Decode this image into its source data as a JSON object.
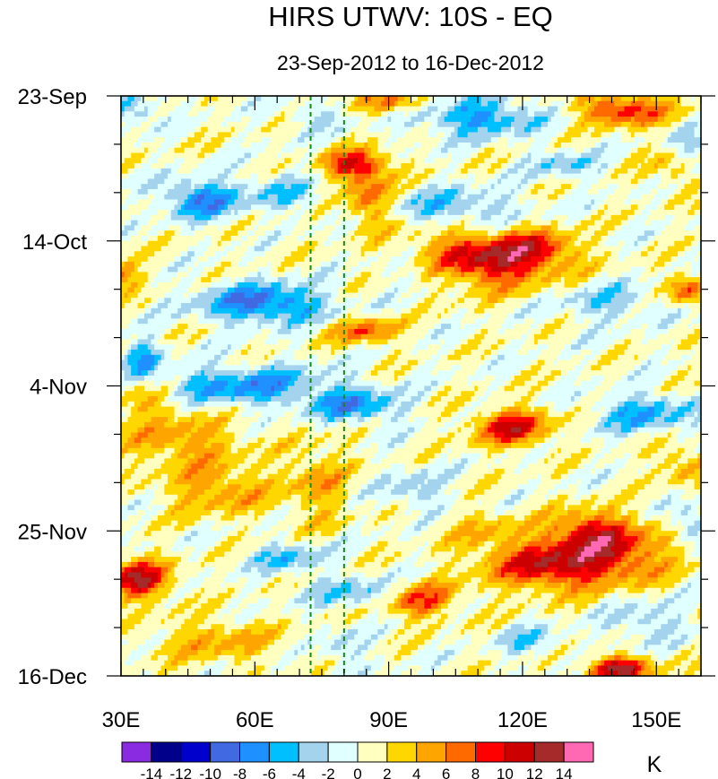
{
  "chart_data": {
    "type": "heatmap",
    "title": "HIRS UTWV: 10S - EQ",
    "subtitle": "23-Sep-2012 to 16-Dec-2012",
    "x_axis": {
      "range_deg_east": [
        30,
        160
      ],
      "ticks": [
        30,
        60,
        90,
        120,
        150
      ],
      "tick_labels": [
        "30E",
        "60E",
        "90E",
        "120E",
        "150E"
      ]
    },
    "y_axis": {
      "range_days": [
        0,
        84
      ],
      "ticks": [
        0,
        21,
        42,
        63,
        84
      ],
      "tick_labels": [
        "23-Sep",
        "14-Oct",
        "4-Nov",
        "25-Nov",
        "16-Dec"
      ],
      "direction": "time increases downward"
    },
    "reference_lines_deg_east": [
      72.5,
      80
    ],
    "colorbar": {
      "unit_label": "K",
      "levels": [
        -14,
        -12,
        -10,
        -8,
        -6,
        -4,
        -2,
        0,
        2,
        4,
        6,
        8,
        10,
        12,
        14
      ],
      "level_labels": [
        "-14",
        "-12",
        "-10",
        "-8",
        "-6",
        "-4",
        "-2",
        "0",
        "2",
        "4",
        "6",
        "8",
        "10",
        "12",
        "14"
      ],
      "colors": [
        "#8a2be2",
        "#00008b",
        "#0000cd",
        "#4169e1",
        "#1e90ff",
        "#00bfff",
        "#a4d3ee",
        "#e0ffff",
        "#ffffc0",
        "#ffd700",
        "#ffa500",
        "#ff6a00",
        "#ff0000",
        "#cd0000",
        "#a52a2a",
        "#ff69b4"
      ]
    },
    "anomalies_K": [
      {
        "lon": 110,
        "day": 24,
        "lon_spread": 11,
        "day_spread": 2.6,
        "value": 13
      },
      {
        "lon": 124,
        "day": 22,
        "lon_spread": 6,
        "day_spread": 1.8,
        "value": 6
      },
      {
        "lon": 83,
        "day": 10,
        "lon_spread": 5,
        "day_spread": 1.5,
        "value": 10
      },
      {
        "lon": 86,
        "day": 15,
        "lon_spread": 3.5,
        "day_spread": 2.5,
        "value": 7
      },
      {
        "lon": 143,
        "day": 2,
        "lon_spread": 7,
        "day_spread": 1.6,
        "value": 9
      },
      {
        "lon": 92,
        "day": 1,
        "lon_spread": 6,
        "day_spread": 1.3,
        "value": 6
      },
      {
        "lon": 118,
        "day": 48,
        "lon_spread": 6,
        "day_spread": 1.8,
        "value": 10
      },
      {
        "lon": 126,
        "day": 68,
        "lon_spread": 10,
        "day_spread": 2.4,
        "value": 10
      },
      {
        "lon": 142,
        "day": 66,
        "lon_spread": 9,
        "day_spread": 3,
        "value": 7
      },
      {
        "lon": 135,
        "day": 63,
        "lon_spread": 6,
        "day_spread": 2,
        "value": 7
      },
      {
        "lon": 34,
        "day": 70,
        "lon_spread": 5,
        "day_spread": 2,
        "value": 11
      },
      {
        "lon": 97,
        "day": 73,
        "lon_spread": 6,
        "day_spread": 1.8,
        "value": 8
      },
      {
        "lon": 142,
        "day": 83,
        "lon_spread": 5,
        "day_spread": 1.2,
        "value": 12
      },
      {
        "lon": 85,
        "day": 34,
        "lon_spread": 5,
        "day_spread": 1.3,
        "value": 7
      },
      {
        "lon": 157,
        "day": 28,
        "lon_spread": 3,
        "day_spread": 1.5,
        "value": 7
      },
      {
        "lon": 44,
        "day": 50,
        "lon_spread": 9,
        "day_spread": 2.5,
        "value": 5
      },
      {
        "lon": 52,
        "day": 57,
        "lon_spread": 8,
        "day_spread": 2.5,
        "value": 5
      },
      {
        "lon": 36,
        "day": 44,
        "lon_spread": 6,
        "day_spread": 2,
        "value": 4
      },
      {
        "lon": 52,
        "day": 79,
        "lon_spread": 10,
        "day_spread": 2.2,
        "value": 4
      },
      {
        "lon": 74,
        "day": 56,
        "lon_spread": 5,
        "day_spread": 4,
        "value": 4
      },
      {
        "lon": 112,
        "day": 63,
        "lon_spread": 6,
        "day_spread": 2,
        "value": 3
      },
      {
        "lon": 156,
        "day": 53,
        "lon_spread": 4,
        "day_spread": 2,
        "value": 4
      },
      {
        "lon": 155,
        "day": 10,
        "lon_spread": 4,
        "day_spread": 2,
        "value": 4
      },
      {
        "lon": 62,
        "day": 30,
        "lon_spread": 10,
        "day_spread": 2,
        "value": -9
      },
      {
        "lon": 48,
        "day": 15,
        "lon_spread": 6,
        "day_spread": 2,
        "value": -8
      },
      {
        "lon": 110,
        "day": 3,
        "lon_spread": 10,
        "day_spread": 2,
        "value": -7
      },
      {
        "lon": 105,
        "day": 16,
        "lon_spread": 10,
        "day_spread": 1.8,
        "value": -5
      },
      {
        "lon": 100,
        "day": 25,
        "lon_spread": 8,
        "day_spread": 2,
        "value": -6
      },
      {
        "lon": 58,
        "day": 42,
        "lon_spread": 15,
        "day_spread": 2,
        "value": -7
      },
      {
        "lon": 83,
        "day": 45,
        "lon_spread": 7,
        "day_spread": 1.6,
        "value": -7
      },
      {
        "lon": 35,
        "day": 38,
        "lon_spread": 3,
        "day_spread": 2,
        "value": -6
      },
      {
        "lon": 84,
        "day": 72,
        "lon_spread": 8,
        "day_spread": 1.5,
        "value": -5
      },
      {
        "lon": 68,
        "day": 67,
        "lon_spread": 6,
        "day_spread": 1.5,
        "value": -5
      },
      {
        "lon": 148,
        "day": 46,
        "lon_spread": 8,
        "day_spread": 2,
        "value": -6
      },
      {
        "lon": 140,
        "day": 30,
        "lon_spread": 8,
        "day_spread": 2,
        "value": -4
      },
      {
        "lon": 148,
        "day": 76,
        "lon_spread": 6,
        "day_spread": 2,
        "value": -4
      },
      {
        "lon": 33,
        "day": 2,
        "lon_spread": 4,
        "day_spread": 1.5,
        "value": -5
      },
      {
        "lon": 158,
        "day": 8,
        "lon_spread": 3,
        "day_spread": 2,
        "value": -5
      },
      {
        "lon": 130,
        "day": 10,
        "lon_spread": 6,
        "day_spread": 1.5,
        "value": -4
      },
      {
        "lon": 96,
        "day": 57,
        "lon_spread": 5,
        "day_spread": 2,
        "value": -4
      },
      {
        "lon": 122,
        "day": 79,
        "lon_spread": 5,
        "day_spread": 1.5,
        "value": -4
      },
      {
        "lon": 158,
        "day": 62,
        "lon_spread": 3,
        "day_spread": 2,
        "value": -5
      },
      {
        "lon": 74,
        "day": 3,
        "lon_spread": 5,
        "day_spread": 1.5,
        "value": -3
      },
      {
        "lon": 66,
        "day": 14,
        "lon_spread": 6,
        "day_spread": 2,
        "value": -4
      },
      {
        "lon": 30,
        "day": 26,
        "lon_spread": 3,
        "day_spread": 1.5,
        "value": 6
      },
      {
        "lon": 80,
        "day": 80,
        "lon_spread": 4,
        "day_spread": 2,
        "value": -3
      }
    ]
  }
}
